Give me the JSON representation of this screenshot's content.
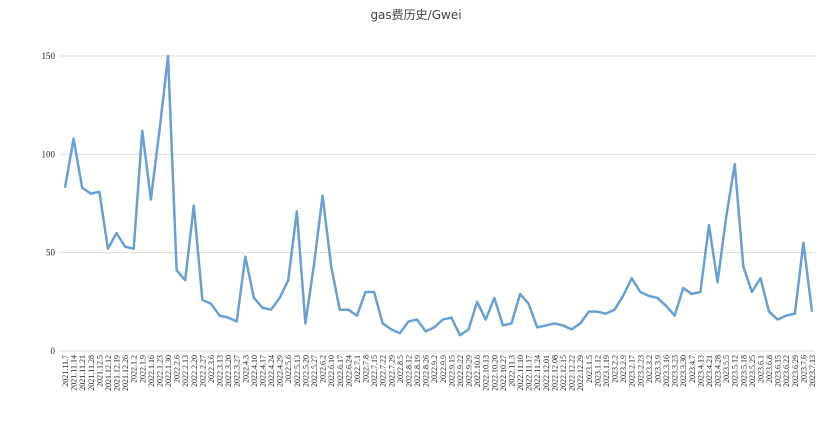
{
  "chart_data": {
    "type": "line",
    "title": "gas费历史/Gwei",
    "categories": [
      "2021.11.7",
      "2021.11.14",
      "2021.11.21",
      "2021.11.28",
      "2021.12.5",
      "2021.12.12",
      "2021.12.19",
      "2021.12.26",
      "2022.1.2",
      "2022.1.9",
      "2022.1.16",
      "2022.1.23",
      "2022.1.30",
      "2022.2.6",
      "2022.2.13",
      "2022.2.20",
      "2022.2.27",
      "2022.3.6",
      "2022.3.13",
      "2022.3.20",
      "2022.3.27",
      "2022.4.3",
      "2022.4.10",
      "2022.4.17",
      "2022.4.24",
      "2022.4.29",
      "2022.5.6",
      "2022.5.13",
      "2022.5.20",
      "2022.5.27",
      "2022.6.2",
      "2022.6.10",
      "2022.6.17",
      "2022.6.24",
      "2022.7.1",
      "2022.7.8",
      "2022.7.15",
      "2022.7.22",
      "2022.7.29",
      "2022.8.5",
      "2022.8.12",
      "2022.8.19",
      "2022.8.26",
      "2022.9.2",
      "2022.9.9",
      "2022.9.15",
      "2022.9.22",
      "2022.9.29",
      "2022.10.6",
      "2022.10.13",
      "2022.10.20",
      "2022.10.27",
      "2022.11.3",
      "2022.11.10",
      "2022.11.17",
      "2022.11.24",
      "2022.12.01",
      "2022.12.08",
      "2022.12.15",
      "2022.12.22",
      "2022.12.29",
      "2023.1.5",
      "2023.1.12",
      "2023.1.19",
      "2023.2.2",
      "2023.2.9",
      "2023.2.17",
      "2023.2.23",
      "2023.3.2",
      "2023.3.9",
      "2023.3.16",
      "2023.3.23",
      "2023.3.30",
      "2023.4.7",
      "2023.4.13",
      "2023.4.21",
      "2023.4.28",
      "2023.5.5",
      "2023.5.12",
      "2023.5.18",
      "2023.5.25",
      "2023.6.1",
      "2023.6.8",
      "2023.6.15",
      "2023.6.22",
      "2023.6.29",
      "2023.7.6",
      "2023.7.13"
    ],
    "values": [
      83,
      108,
      83,
      80,
      81,
      52,
      60,
      53,
      52,
      112,
      77,
      112,
      150,
      41,
      36,
      74,
      26,
      24,
      18,
      17,
      15,
      48,
      27,
      22,
      21,
      27,
      36,
      71,
      14,
      44,
      79,
      43,
      21,
      21,
      18,
      30,
      30,
      14,
      11,
      9,
      15,
      16,
      10,
      12,
      16,
      17,
      8,
      11,
      25,
      16,
      27,
      13,
      14,
      29,
      24,
      12,
      13,
      14,
      13,
      11,
      14,
      20,
      20,
      19,
      21,
      28,
      37,
      30,
      28,
      27,
      23,
      18,
      32,
      29,
      30,
      64,
      35,
      68,
      95,
      43,
      30,
      37,
      20,
      16,
      18,
      19,
      55,
      20
    ],
    "color": "#6a9fd4",
    "ylim": [
      0,
      150
    ],
    "yticks": [
      0,
      50,
      100,
      150
    ],
    "grid": true
  }
}
